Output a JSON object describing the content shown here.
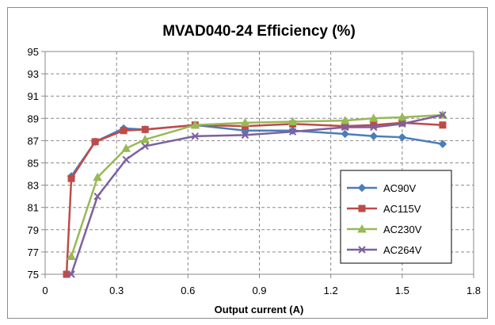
{
  "chart_data": {
    "type": "line",
    "title": "MVAD040-24 Efficiency (%)",
    "xlabel": "Output current (A)",
    "ylabel": "",
    "xlim": [
      0,
      1.8
    ],
    "ylim": [
      75,
      95
    ],
    "x_ticks": [
      0,
      0.3,
      0.6,
      0.9,
      1.2,
      1.5,
      1.8
    ],
    "x_tick_labels": [
      "0",
      "0.3",
      "0.6",
      "0.9",
      "1.2",
      "1.5",
      "1.8"
    ],
    "y_ticks": [
      75,
      77,
      79,
      81,
      83,
      85,
      87,
      89,
      91,
      93,
      95
    ],
    "y_tick_labels": [
      "75",
      "77",
      "79",
      "81",
      "83",
      "85",
      "87",
      "89",
      "91",
      "93",
      "95"
    ],
    "grid": true,
    "legend_position": "bottom-right",
    "series": [
      {
        "name": "AC90V",
        "color": "#4a7ebb",
        "marker": "diamond",
        "points": [
          [
            0.11,
            83.8
          ],
          [
            0.21,
            86.9
          ],
          [
            0.33,
            88.1
          ],
          [
            0.42,
            88.0
          ],
          [
            0.63,
            88.4
          ],
          [
            0.84,
            87.9
          ],
          [
            1.04,
            87.9
          ],
          [
            1.26,
            87.6
          ],
          [
            1.38,
            87.4
          ],
          [
            1.5,
            87.3
          ],
          [
            1.67,
            86.7
          ]
        ]
      },
      {
        "name": "AC115V",
        "color": "#be4b48",
        "marker": "square",
        "points": [
          [
            0.09,
            75.0
          ],
          [
            0.11,
            83.6
          ],
          [
            0.21,
            86.9
          ],
          [
            0.33,
            87.9
          ],
          [
            0.42,
            88.0
          ],
          [
            0.63,
            88.4
          ],
          [
            0.84,
            88.3
          ],
          [
            1.04,
            88.5
          ],
          [
            1.26,
            88.3
          ],
          [
            1.38,
            88.4
          ],
          [
            1.5,
            88.6
          ],
          [
            1.67,
            88.4
          ]
        ]
      },
      {
        "name": "AC230V",
        "color": "#98b954",
        "marker": "triangle",
        "points": [
          [
            0.11,
            76.6
          ],
          [
            0.22,
            83.7
          ],
          [
            0.34,
            86.3
          ],
          [
            0.42,
            87.1
          ],
          [
            0.63,
            88.4
          ],
          [
            0.84,
            88.6
          ],
          [
            1.04,
            88.7
          ],
          [
            1.26,
            88.8
          ],
          [
            1.38,
            89.0
          ],
          [
            1.5,
            89.1
          ],
          [
            1.67,
            89.3
          ]
        ]
      },
      {
        "name": "AC264V",
        "color": "#7d60a0",
        "marker": "x",
        "points": [
          [
            0.11,
            75.0
          ],
          [
            0.22,
            82.0
          ],
          [
            0.34,
            85.3
          ],
          [
            0.42,
            86.5
          ],
          [
            0.63,
            87.4
          ],
          [
            0.84,
            87.5
          ],
          [
            1.04,
            87.8
          ],
          [
            1.26,
            88.2
          ],
          [
            1.38,
            88.2
          ],
          [
            1.5,
            88.5
          ],
          [
            1.67,
            89.3
          ]
        ]
      }
    ]
  }
}
